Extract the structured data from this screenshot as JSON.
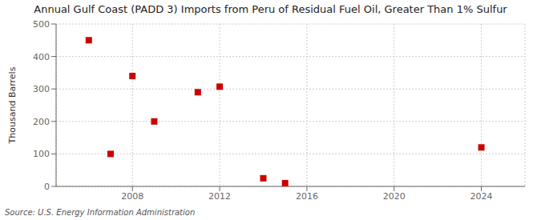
{
  "chart_data": {
    "type": "scatter",
    "title": "Annual Gulf Coast (PADD 3) Imports from Peru of Residual Fuel Oil, Greater Than 1% Sulfur",
    "ylabel": "Thousand Barrels",
    "source": "Source: U.S. Energy Information Administration",
    "x": [
      2006,
      2007,
      2008,
      2009,
      2011,
      2012,
      2014,
      2015,
      2024
    ],
    "values": [
      450,
      100,
      340,
      200,
      290,
      307,
      25,
      10,
      120
    ],
    "xlim": [
      2004.5,
      2026
    ],
    "ylim": [
      0,
      500
    ],
    "xticks": [
      2008,
      2012,
      2016,
      2020,
      2024
    ],
    "yticks": [
      0,
      100,
      200,
      300,
      400,
      500
    ],
    "color": "#cc0000",
    "marker": "square",
    "grid": true
  }
}
